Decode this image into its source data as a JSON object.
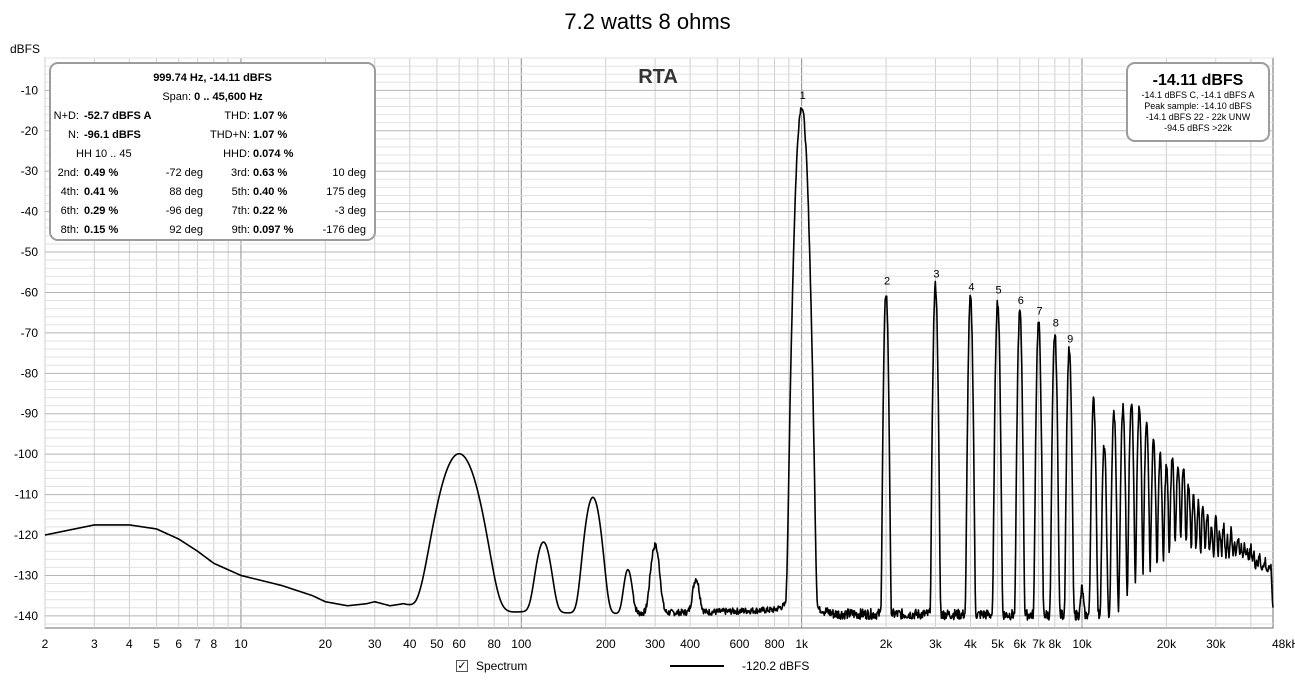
{
  "title": "7.2 watts 8 ohms",
  "chart_data": {
    "type": "line",
    "title": "7.2 watts 8 ohms",
    "subtitle": "RTA",
    "ylabel": "dBFS",
    "xlabel": "",
    "x_scale": "log",
    "xlim": [
      2,
      48000
    ],
    "ylim": [
      -143,
      -2
    ],
    "grid": true,
    "x_ticks": [
      {
        "v": 2,
        "l": "2"
      },
      {
        "v": 3,
        "l": "3"
      },
      {
        "v": 4,
        "l": "4"
      },
      {
        "v": 5,
        "l": "5"
      },
      {
        "v": 6,
        "l": "6"
      },
      {
        "v": 7,
        "l": "7"
      },
      {
        "v": 8,
        "l": "8"
      },
      {
        "v": 10,
        "l": "10"
      },
      {
        "v": 20,
        "l": "20"
      },
      {
        "v": 30,
        "l": "30"
      },
      {
        "v": 40,
        "l": "40"
      },
      {
        "v": 50,
        "l": "50"
      },
      {
        "v": 60,
        "l": "60"
      },
      {
        "v": 80,
        "l": "80"
      },
      {
        "v": 100,
        "l": "100"
      },
      {
        "v": 200,
        "l": "200"
      },
      {
        "v": 300,
        "l": "300"
      },
      {
        "v": 400,
        "l": "400"
      },
      {
        "v": 600,
        "l": "600"
      },
      {
        "v": 800,
        "l": "800"
      },
      {
        "v": 1000,
        "l": "1k"
      },
      {
        "v": 2000,
        "l": "2k"
      },
      {
        "v": 3000,
        "l": "3k"
      },
      {
        "v": 4000,
        "l": "4k"
      },
      {
        "v": 5000,
        "l": "5k"
      },
      {
        "v": 6000,
        "l": "6k"
      },
      {
        "v": 7000,
        "l": "7k"
      },
      {
        "v": 8000,
        "l": "8k"
      },
      {
        "v": 10000,
        "l": "10k"
      },
      {
        "v": 20000,
        "l": "20k"
      },
      {
        "v": 30000,
        "l": "30k"
      },
      {
        "v": 48000,
        "l": "48kHz"
      }
    ],
    "y_ticks": [
      -10,
      -20,
      -30,
      -40,
      -50,
      -60,
      -70,
      -80,
      -90,
      -100,
      -110,
      -120,
      -130,
      -140
    ],
    "series": [
      {
        "color": "#000000",
        "noise_floor": -139.5,
        "baseline": [
          [
            2,
            -120
          ],
          [
            3,
            -117.5
          ],
          [
            4,
            -117.5
          ],
          [
            5,
            -118.5
          ],
          [
            6,
            -121
          ],
          [
            7,
            -124
          ],
          [
            8,
            -127
          ],
          [
            10,
            -130
          ],
          [
            14,
            -132.5
          ],
          [
            18,
            -135
          ],
          [
            20,
            -136.5
          ],
          [
            24,
            -137.5
          ],
          [
            28,
            -137
          ],
          [
            30,
            -136.5
          ],
          [
            34,
            -137.5
          ],
          [
            38,
            -137
          ],
          [
            42,
            -138
          ],
          [
            46,
            -137.5
          ],
          [
            50,
            -138
          ],
          [
            54,
            -137.5
          ],
          [
            70,
            -139.5
          ],
          [
            100,
            -139
          ],
          [
            200,
            -139.5
          ],
          [
            500,
            -139
          ],
          [
            800,
            -138.5
          ],
          [
            900,
            -137
          ],
          [
            1000,
            -134
          ],
          [
            1100,
            -138
          ],
          [
            1300,
            -139.5
          ],
          [
            48000,
            -140
          ]
        ],
        "peaks": [
          {
            "f": 60,
            "level": -100,
            "w": 0.045
          },
          {
            "f": 120,
            "level": -123,
            "w": 0.02
          },
          {
            "f": 180,
            "level": -111,
            "w": 0.02
          },
          {
            "f": 240,
            "level": -131.5,
            "w": 0.012
          },
          {
            "f": 300,
            "level": -124,
            "w": 0.012
          },
          {
            "f": 420,
            "level": -135,
            "w": 0.01
          },
          {
            "f": 999.74,
            "level": -14.11,
            "w": 0.01
          },
          {
            "f": 2000,
            "level": -60,
            "w": 0.004
          },
          {
            "f": 3000,
            "level": -58.3,
            "w": 0.004
          },
          {
            "f": 4000,
            "level": -61.5,
            "w": 0.004
          },
          {
            "f": 5000,
            "level": -62.2,
            "w": 0.004
          },
          {
            "f": 6000,
            "level": -64.8,
            "w": 0.004
          },
          {
            "f": 7000,
            "level": -67.4,
            "w": 0.004
          },
          {
            "f": 8000,
            "level": -70.4,
            "w": 0.004
          },
          {
            "f": 9000,
            "level": -74.3,
            "w": 0.004
          },
          {
            "f": 10000,
            "level": -138.5,
            "w": 0.004
          },
          {
            "f": 11000,
            "level": -86.8,
            "w": 0.004
          },
          {
            "f": 12000,
            "level": -98,
            "w": 0.004
          },
          {
            "f": 13000,
            "level": -89.8,
            "w": 0.004
          },
          {
            "f": 14000,
            "level": -88.5,
            "w": 0.004
          },
          {
            "f": 15000,
            "level": -87.2,
            "w": 0.004
          },
          {
            "f": 16000,
            "level": -89,
            "w": 0.004
          },
          {
            "f": 17000,
            "level": -92.7,
            "w": 0.004
          },
          {
            "f": 18000,
            "level": -96.5,
            "w": 0.004
          },
          {
            "f": 19000,
            "level": -100.5,
            "w": 0.004
          },
          {
            "f": 20000,
            "level": -103,
            "w": 0.004
          },
          {
            "f": 21000,
            "level": -101,
            "w": 0.004
          },
          {
            "f": 22000,
            "level": -102.5,
            "w": 0.004
          },
          {
            "f": 23000,
            "level": -104,
            "w": 0.004
          },
          {
            "f": 24000,
            "level": -107.5,
            "w": 0.004
          },
          {
            "f": 25000,
            "level": -110.5,
            "w": 0.004
          },
          {
            "f": 26000,
            "level": -112.5,
            "w": 0.004
          },
          {
            "f": 27000,
            "level": -113,
            "w": 0.004
          },
          {
            "f": 28000,
            "level": -115,
            "w": 0.004
          },
          {
            "f": 29000,
            "level": -118,
            "w": 0.004
          },
          {
            "f": 30000,
            "level": -117,
            "w": 0.004
          },
          {
            "f": 31000,
            "level": -120,
            "w": 0.004
          },
          {
            "f": 32000,
            "level": -118.5,
            "w": 0.004
          },
          {
            "f": 33000,
            "level": -122,
            "w": 0.004
          },
          {
            "f": 34000,
            "level": -120,
            "w": 0.004
          },
          {
            "f": 35000,
            "level": -123,
            "w": 0.004
          },
          {
            "f": 36000,
            "level": -121.5,
            "w": 0.004
          },
          {
            "f": 37000,
            "level": -125,
            "w": 0.004
          },
          {
            "f": 38000,
            "level": -123,
            "w": 0.004
          },
          {
            "f": 39000,
            "level": -126,
            "w": 0.004
          },
          {
            "f": 40000,
            "level": -125,
            "w": 0.004
          },
          {
            "f": 41000,
            "level": -127,
            "w": 0.004
          },
          {
            "f": 42000,
            "level": -129,
            "w": 0.004
          },
          {
            "f": 43000,
            "level": -127.5,
            "w": 0.004
          },
          {
            "f": 44000,
            "level": -131,
            "w": 0.004
          },
          {
            "f": 45000,
            "level": -129,
            "w": 0.004
          },
          {
            "f": 46000,
            "level": -133,
            "w": 0.004
          },
          {
            "f": 47000,
            "level": -130.5,
            "w": 0.004
          }
        ]
      }
    ],
    "harmonic_labels": [
      {
        "n": "1",
        "f": 999.74,
        "level": -14.11
      },
      {
        "n": "2",
        "f": 2000,
        "level": -60
      },
      {
        "n": "3",
        "f": 3000,
        "level": -58.3
      },
      {
        "n": "4",
        "f": 4000,
        "level": -61.5
      },
      {
        "n": "5",
        "f": 5000,
        "level": -62.2
      },
      {
        "n": "6",
        "f": 6000,
        "level": -64.8
      },
      {
        "n": "7",
        "f": 7000,
        "level": -67.4
      },
      {
        "n": "8",
        "f": 8000,
        "level": -70.4
      },
      {
        "n": "9",
        "f": 9000,
        "level": -74.3
      }
    ]
  },
  "info": {
    "header": "999.74 Hz, -14.11 dBFS",
    "span_label": "Span:",
    "span": "0 .. 45,600 Hz",
    "nd_label": "N+D:",
    "nd": "-52.7 dBFS A",
    "thd_label": "THD:",
    "thd": "1.07 %",
    "n_label": "N:",
    "n": "-96.1 dBFS",
    "thdn_label": "THD+N:",
    "thdn": "1.07 %",
    "hh": "HH 10 .. 45",
    "hhd_label": "HHD:",
    "hhd": "0.074 %",
    "harmonics": [
      {
        "label": "2nd:",
        "value": "0.49 %",
        "phase": "-72 deg"
      },
      {
        "label": "3rd:",
        "value": "0.63 %",
        "phase": "10 deg"
      },
      {
        "label": "4th:",
        "value": "0.41 %",
        "phase": "88 deg"
      },
      {
        "label": "5th:",
        "value": "0.40 %",
        "phase": "175 deg"
      },
      {
        "label": "6th:",
        "value": "0.29 %",
        "phase": "-96 deg"
      },
      {
        "label": "7th:",
        "value": "0.22 %",
        "phase": "-3 deg"
      },
      {
        "label": "8th:",
        "value": "0.15 %",
        "phase": "92 deg"
      },
      {
        "label": "9th:",
        "value": "0.097 %",
        "phase": "-176 deg"
      }
    ]
  },
  "level_box": {
    "main": "-14.11 dBFS",
    "lines": [
      "-14.1 dBFS C, -14.1 dBFS A",
      "Peak sample: -14.10 dBFS",
      "-14.1 dBFS 22 - 22k UNW",
      "-94.5 dBFS >22k"
    ]
  },
  "legend": {
    "checkbox_label": "Spectrum",
    "checked": true,
    "line_label": "-120.2 dBFS"
  }
}
